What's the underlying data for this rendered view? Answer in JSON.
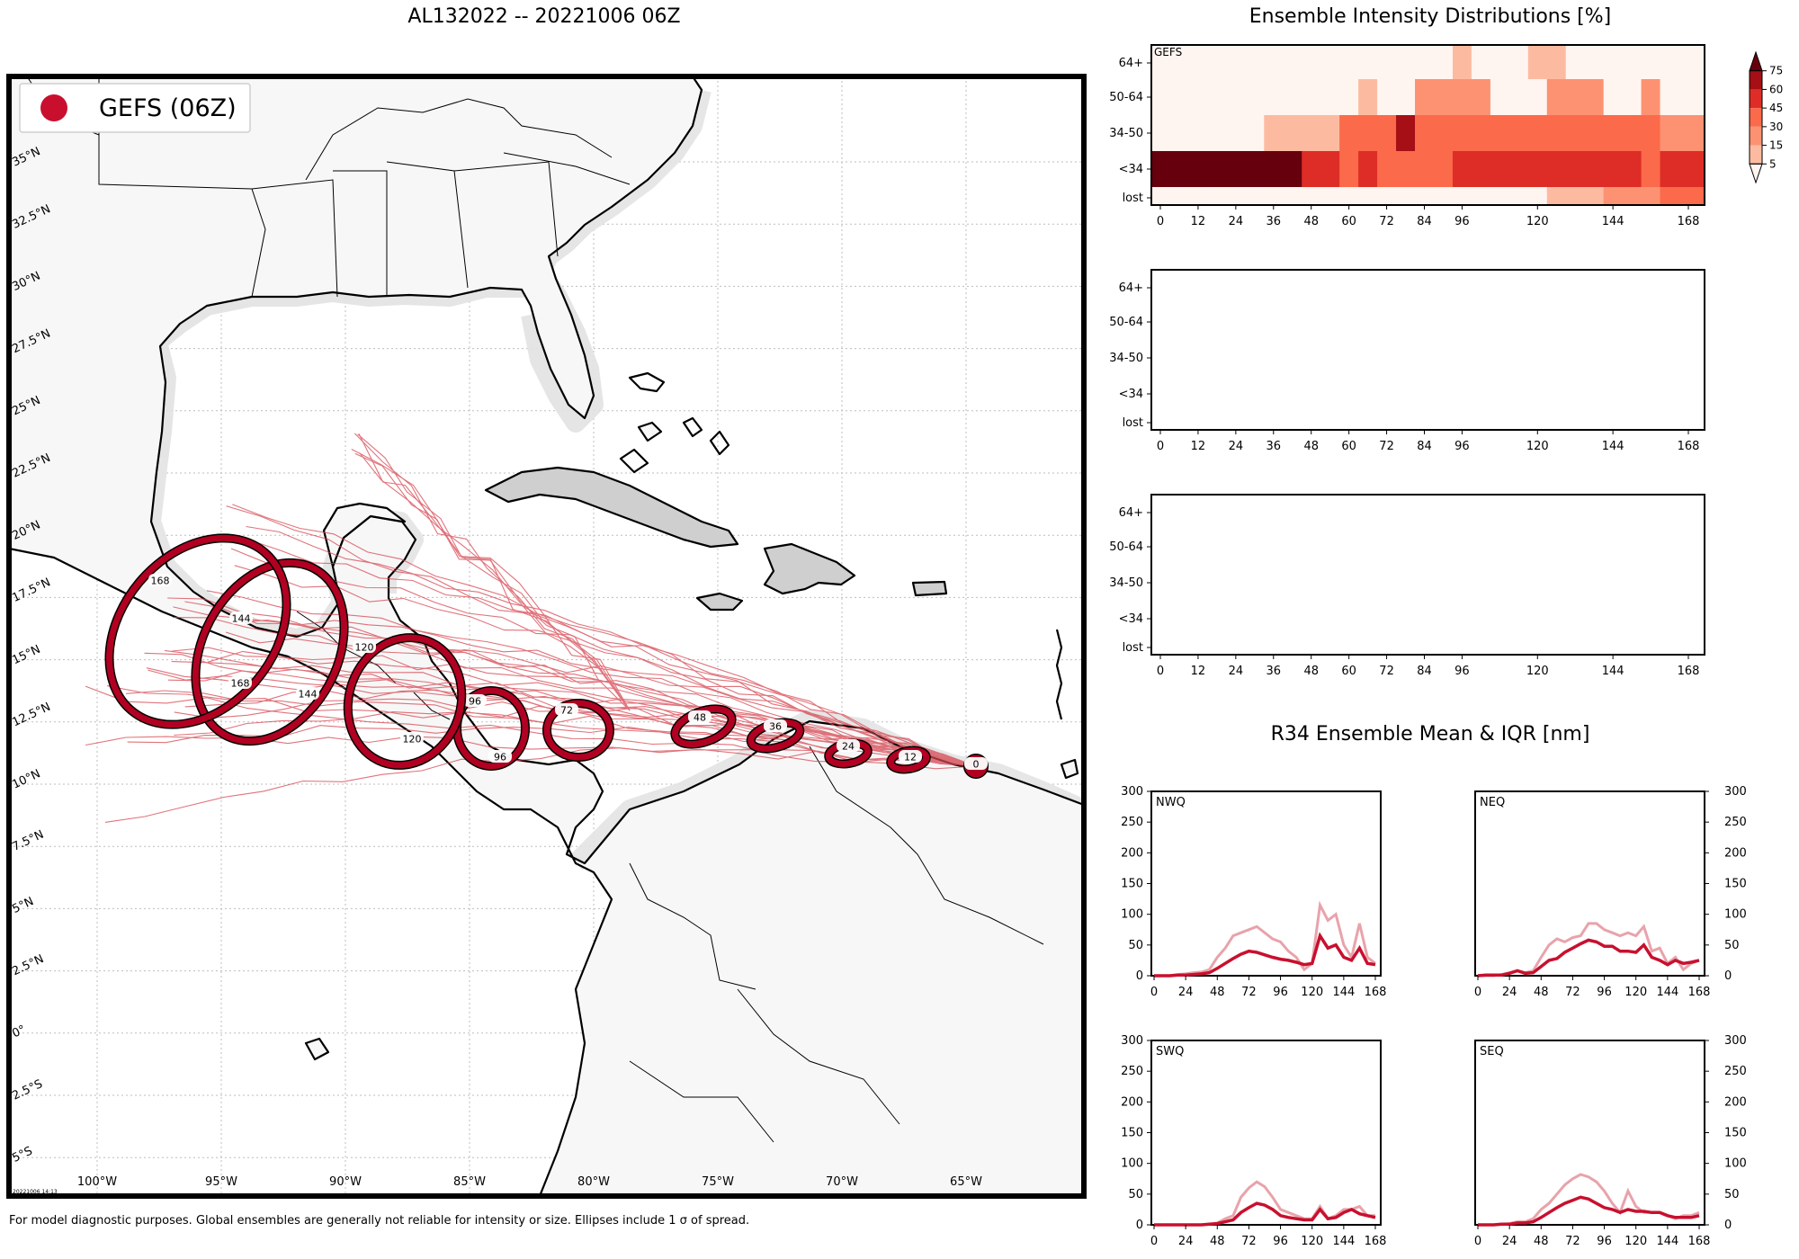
{
  "titles": {
    "main": "AL132022 -- 20221006 06Z",
    "intensity": "Ensemble Intensity Distributions [%]",
    "r34": "R34 Ensemble Mean & IQR [nm]"
  },
  "footer": "For model diagnostic purposes. Global ensembles are generally not reliable for intensity or size. Ellipses include 1 σ of spread.",
  "stamp": "20221006 14:13",
  "colors": {
    "track": "#c8102e",
    "ellipse": "#b10021",
    "land": "#f7f7f7",
    "land_stroke": "#000000"
  },
  "legend": {
    "label": "GEFS (06Z)",
    "color": "#c8102e"
  },
  "map": {
    "lon_labels": [
      "100°W",
      "95°W",
      "90°W",
      "85°W",
      "80°W",
      "75°W",
      "70°W",
      "65°W"
    ],
    "lat_labels": [
      "35°N",
      "32.5°N",
      "30°N",
      "27.5°N",
      "25°N",
      "22.5°N",
      "20°N",
      "17.5°N",
      "15°N",
      "12.5°N",
      "10°N",
      "7.5°N",
      "5°N",
      "2.5°N",
      "0°",
      "2.5°S",
      "5°S"
    ],
    "ellipse_labels": [
      "0",
      "12",
      "24",
      "36",
      "48",
      "72",
      "96",
      "96",
      "120",
      "120",
      "144",
      "144",
      "168",
      "168"
    ]
  },
  "chart_data": [
    {
      "type": "heatmap",
      "name": "GEFS",
      "x_ticks": [
        0,
        12,
        24,
        36,
        48,
        60,
        72,
        84,
        96,
        120,
        144,
        168
      ],
      "y_categories": [
        "lost",
        "<34",
        "34-50",
        "50-64",
        "64+"
      ],
      "colorbar": {
        "ticks": [
          5,
          15,
          30,
          45,
          60,
          75
        ],
        "colors": [
          "#fee0d2",
          "#fcbba1",
          "#fc9272",
          "#fb6a4a",
          "#de2d26",
          "#a50f15",
          "#67000d"
        ]
      },
      "x_hours": [
        0,
        6,
        12,
        18,
        24,
        30,
        36,
        42,
        48,
        54,
        60,
        66,
        72,
        78,
        84,
        90,
        96,
        102,
        108,
        114,
        120,
        126,
        132,
        138,
        144,
        150,
        156,
        162,
        168
      ],
      "values": {
        "lost": [
          0,
          0,
          0,
          0,
          0,
          0,
          0,
          0,
          0,
          0,
          0,
          0,
          0,
          0,
          0,
          0,
          0,
          0,
          0,
          0,
          0,
          10,
          10,
          10,
          20,
          20,
          20,
          35,
          35
        ],
        "<34": [
          95,
          95,
          95,
          95,
          85,
          85,
          85,
          85,
          50,
          45,
          40,
          45,
          40,
          40,
          40,
          40,
          45,
          45,
          45,
          55,
          55,
          45,
          45,
          45,
          45,
          45,
          40,
          45,
          45
        ],
        "34-50": [
          0,
          0,
          0,
          0,
          0,
          0,
          10,
          10,
          10,
          10,
          40,
          40,
          40,
          60,
          40,
          40,
          40,
          40,
          40,
          30,
          30,
          40,
          30,
          30,
          30,
          30,
          30,
          15,
          15
        ],
        "50-64": [
          0,
          0,
          0,
          0,
          0,
          0,
          0,
          0,
          0,
          0,
          0,
          5,
          0,
          0,
          25,
          25,
          25,
          25,
          0,
          0,
          0,
          15,
          15,
          15,
          0,
          0,
          15,
          0,
          0
        ],
        "64+": [
          0,
          0,
          0,
          0,
          0,
          0,
          0,
          0,
          0,
          0,
          0,
          0,
          0,
          0,
          0,
          0,
          5,
          0,
          0,
          0,
          10,
          10,
          0,
          0,
          0,
          0,
          0,
          0,
          0
        ]
      }
    },
    {
      "type": "heatmap",
      "x_ticks": [
        0,
        12,
        24,
        36,
        48,
        60,
        72,
        84,
        96,
        120,
        144,
        168
      ],
      "y_categories": [
        "lost",
        "<34",
        "34-50",
        "50-64",
        "64+"
      ],
      "values": {}
    },
    {
      "type": "heatmap",
      "x_ticks": [
        0,
        12,
        24,
        36,
        48,
        60,
        72,
        84,
        96,
        120,
        144,
        168
      ],
      "y_categories": [
        "lost",
        "<34",
        "34-50",
        "50-64",
        "64+"
      ],
      "values": {}
    },
    {
      "type": "line",
      "name": "NWQ",
      "x": [
        0,
        6,
        12,
        18,
        24,
        30,
        36,
        42,
        48,
        54,
        60,
        66,
        72,
        78,
        84,
        90,
        96,
        102,
        108,
        114,
        120,
        126,
        132,
        138,
        144,
        150,
        156,
        162,
        168
      ],
      "ylim": [
        0,
        300
      ],
      "x_ticks": [
        0,
        24,
        48,
        72,
        96,
        120,
        144,
        168
      ],
      "y_ticks": [
        0,
        50,
        100,
        150,
        200,
        250,
        300
      ],
      "y_side": "left",
      "series": [
        {
          "role": "iqr",
          "values": [
            0,
            0,
            0,
            2,
            3,
            5,
            6,
            10,
            30,
            45,
            65,
            70,
            75,
            80,
            70,
            60,
            55,
            40,
            30,
            10,
            20,
            115,
            90,
            100,
            50,
            30,
            85,
            30,
            20
          ]
        },
        {
          "role": "mean",
          "values": [
            0,
            0,
            0,
            1,
            1,
            2,
            3,
            5,
            12,
            20,
            28,
            35,
            40,
            38,
            34,
            30,
            27,
            25,
            22,
            18,
            20,
            65,
            45,
            50,
            30,
            25,
            45,
            20,
            18
          ]
        }
      ]
    },
    {
      "type": "line",
      "name": "NEQ",
      "x": [
        0,
        6,
        12,
        18,
        24,
        30,
        36,
        42,
        48,
        54,
        60,
        66,
        72,
        78,
        84,
        90,
        96,
        102,
        108,
        114,
        120,
        126,
        132,
        138,
        144,
        150,
        156,
        162,
        168
      ],
      "ylim": [
        0,
        300
      ],
      "x_ticks": [
        0,
        24,
        48,
        72,
        96,
        120,
        144,
        168
      ],
      "y_ticks": [
        0,
        50,
        100,
        150,
        200,
        250,
        300
      ],
      "y_side": "right",
      "series": [
        {
          "role": "iqr",
          "values": [
            0,
            0,
            0,
            2,
            5,
            8,
            5,
            8,
            30,
            50,
            60,
            55,
            62,
            65,
            85,
            85,
            75,
            70,
            65,
            70,
            65,
            80,
            40,
            45,
            20,
            30,
            10,
            20,
            25
          ]
        },
        {
          "role": "mean",
          "values": [
            0,
            1,
            1,
            1,
            4,
            8,
            4,
            5,
            15,
            25,
            28,
            38,
            45,
            52,
            58,
            55,
            48,
            48,
            40,
            40,
            38,
            50,
            30,
            25,
            18,
            25,
            20,
            22,
            25
          ]
        }
      ]
    },
    {
      "type": "line",
      "name": "SWQ",
      "x": [
        0,
        6,
        12,
        18,
        24,
        30,
        36,
        42,
        48,
        54,
        60,
        66,
        72,
        78,
        84,
        90,
        96,
        102,
        108,
        114,
        120,
        126,
        132,
        138,
        144,
        150,
        156,
        162,
        168
      ],
      "ylim": [
        0,
        300
      ],
      "x_ticks": [
        0,
        24,
        48,
        72,
        96,
        120,
        144,
        168
      ],
      "y_ticks": [
        0,
        50,
        100,
        150,
        200,
        250,
        300
      ],
      "y_side": "left",
      "series": [
        {
          "role": "iqr",
          "values": [
            0,
            0,
            0,
            0,
            0,
            0,
            0,
            1,
            3,
            10,
            15,
            45,
            60,
            70,
            62,
            45,
            25,
            20,
            15,
            10,
            10,
            30,
            10,
            15,
            25,
            25,
            30,
            15,
            15
          ]
        },
        {
          "role": "mean",
          "values": [
            0,
            0,
            0,
            0,
            0,
            0,
            0,
            1,
            2,
            5,
            8,
            20,
            28,
            35,
            32,
            25,
            15,
            12,
            10,
            8,
            8,
            25,
            10,
            12,
            20,
            25,
            18,
            15,
            12
          ]
        }
      ]
    },
    {
      "type": "line",
      "name": "SEQ",
      "x": [
        0,
        6,
        12,
        18,
        24,
        30,
        36,
        42,
        48,
        54,
        60,
        66,
        72,
        78,
        84,
        90,
        96,
        102,
        108,
        114,
        120,
        126,
        132,
        138,
        144,
        150,
        156,
        162,
        168
      ],
      "ylim": [
        0,
        300
      ],
      "x_ticks": [
        0,
        24,
        48,
        72,
        96,
        120,
        144,
        168
      ],
      "y_ticks": [
        0,
        50,
        100,
        150,
        200,
        250,
        300
      ],
      "y_side": "right",
      "series": [
        {
          "role": "iqr",
          "values": [
            0,
            0,
            0,
            1,
            2,
            5,
            5,
            10,
            25,
            35,
            50,
            65,
            75,
            82,
            78,
            70,
            55,
            35,
            20,
            55,
            30,
            20,
            20,
            20,
            15,
            10,
            15,
            15,
            20
          ]
        },
        {
          "role": "mean",
          "values": [
            0,
            0,
            0,
            1,
            1,
            3,
            3,
            5,
            12,
            20,
            28,
            35,
            40,
            45,
            42,
            35,
            28,
            25,
            20,
            25,
            22,
            22,
            20,
            20,
            15,
            12,
            12,
            12,
            15
          ]
        }
      ]
    }
  ]
}
